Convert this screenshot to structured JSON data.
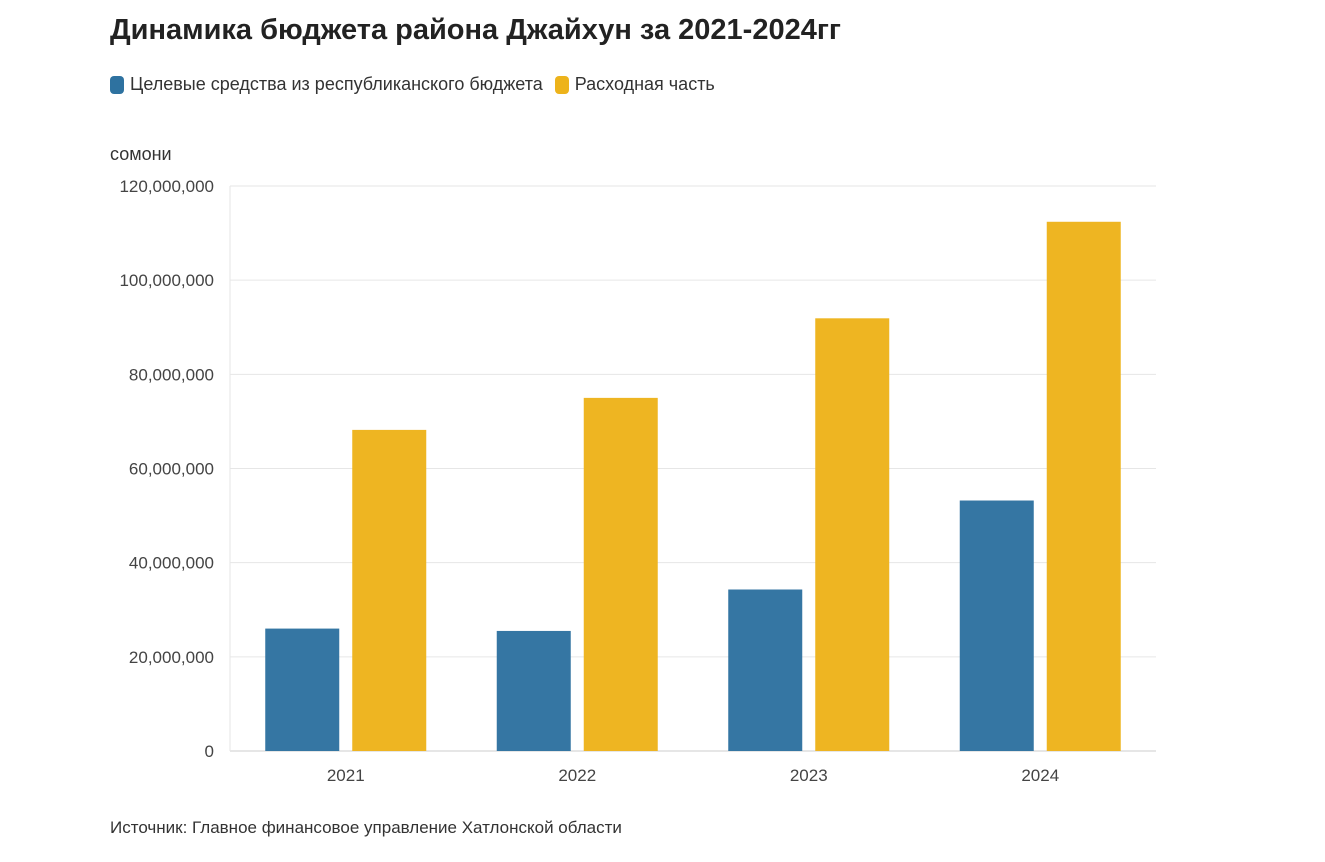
{
  "chart_data": {
    "type": "bar",
    "title": "Динамика бюджета района Джайхун за 2021-2024гг",
    "ylabel": "сомони",
    "xlabel": "",
    "categories": [
      "2021",
      "2022",
      "2023",
      "2024"
    ],
    "series": [
      {
        "name": "Целевые средства из республиканского бюджета",
        "color": "#2e72a0",
        "values": [
          26000000,
          25500000,
          34300000,
          53200000
        ]
      },
      {
        "name": "Расходная часть",
        "color": "#edb31b",
        "values": [
          68200000,
          75000000,
          91900000,
          112400000
        ]
      }
    ],
    "ylim": [
      0,
      120000000
    ],
    "yticks": [
      0,
      20000000,
      40000000,
      60000000,
      80000000,
      100000000,
      120000000
    ],
    "ytick_labels": [
      "0",
      "20,000,000",
      "40,000,000",
      "60,000,000",
      "80,000,000",
      "100,000,000",
      "120,000,000"
    ],
    "grid": true,
    "legend_position": "top-left"
  },
  "source": "Источник: Главное финансовое управление Хатлонской области"
}
